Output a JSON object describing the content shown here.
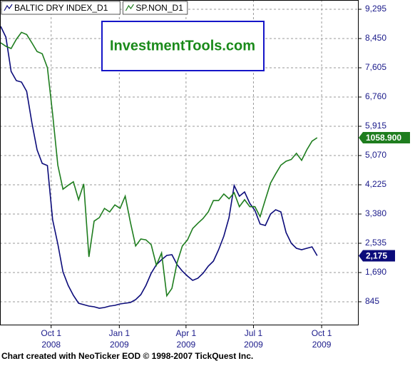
{
  "chart_data": {
    "type": "line",
    "watermark": "InvestmentTools.com",
    "footer": "Chart created with NeoTicker EOD © 1998-2007 TickQuest Inc.",
    "grid": true,
    "xlim": [
      "2008-07-24",
      "2009-11-19"
    ],
    "xticks": [
      {
        "value": "2008-10-01",
        "label": [
          "Oct 1",
          "2008"
        ]
      },
      {
        "value": "2009-01-01",
        "label": [
          "Jan 1",
          "2009"
        ]
      },
      {
        "value": "2009-04-01",
        "label": [
          "Apr 1",
          "2009"
        ]
      },
      {
        "value": "2009-07-01",
        "label": [
          "Jul 1",
          "2009"
        ]
      },
      {
        "value": "2009-10-01",
        "label": [
          "Oct 1",
          "2009"
        ]
      }
    ],
    "ylim": [
      185,
      9563
    ],
    "yticks": [
      {
        "value": 845,
        "label": "845"
      },
      {
        "value": 1690,
        "label": "1,690"
      },
      {
        "value": 2535,
        "label": "2,535"
      },
      {
        "value": 3380,
        "label": "3,380"
      },
      {
        "value": 4225,
        "label": "4,225"
      },
      {
        "value": 5070,
        "label": "5,070"
      },
      {
        "value": 5915,
        "label": "5,915"
      },
      {
        "value": 6760,
        "label": "6,760"
      },
      {
        "value": 7605,
        "label": "7,605"
      },
      {
        "value": 8450,
        "label": "8,450"
      },
      {
        "value": 9295,
        "label": "9,295"
      }
    ],
    "y2lim": [
      631,
      1374
    ],
    "x": [
      "2008-07-25",
      "2008-08-01",
      "2008-08-08",
      "2008-08-15",
      "2008-08-22",
      "2008-08-29",
      "2008-09-05",
      "2008-09-12",
      "2008-09-19",
      "2008-09-26",
      "2008-10-03",
      "2008-10-10",
      "2008-10-17",
      "2008-10-24",
      "2008-10-31",
      "2008-11-07",
      "2008-11-14",
      "2008-11-21",
      "2008-11-28",
      "2008-12-05",
      "2008-12-12",
      "2008-12-19",
      "2008-12-26",
      "2009-01-02",
      "2009-01-09",
      "2009-01-16",
      "2009-01-23",
      "2009-01-30",
      "2009-02-06",
      "2009-02-13",
      "2009-02-20",
      "2009-02-27",
      "2009-03-06",
      "2009-03-13",
      "2009-03-20",
      "2009-03-27",
      "2009-04-03",
      "2009-04-10",
      "2009-04-17",
      "2009-04-24",
      "2009-05-01",
      "2009-05-08",
      "2009-05-15",
      "2009-05-22",
      "2009-05-29",
      "2009-06-05",
      "2009-06-12",
      "2009-06-19",
      "2009-06-26",
      "2009-07-03",
      "2009-07-10",
      "2009-07-17",
      "2009-07-24",
      "2009-07-31",
      "2009-08-07",
      "2009-08-14",
      "2009-08-21",
      "2009-08-28",
      "2009-09-04",
      "2009-09-11",
      "2009-09-18",
      "2009-09-25"
    ],
    "series": [
      {
        "name": "BALTIC DRY INDEX_D1",
        "color": "#0b0b7a",
        "axis": "y",
        "values": [
          8800,
          8490,
          7500,
          7234,
          7193,
          6925,
          6018,
          5235,
          4843,
          4781,
          3215,
          2514,
          1711,
          1319,
          1030,
          804,
          763,
          721,
          700,
          659,
          680,
          721,
          742,
          783,
          804,
          824,
          907,
          1051,
          1319,
          1669,
          1917,
          2061,
          2185,
          2205,
          1917,
          1731,
          1587,
          1463,
          1525,
          1669,
          1875,
          2020,
          2350,
          2741,
          3277,
          4204,
          3895,
          4019,
          3689,
          3483,
          3091,
          3050,
          3380,
          3504,
          3442,
          2844,
          2535,
          2391,
          2350,
          2391,
          2432,
          2175
        ],
        "value_labels": [
          null,
          null,
          null,
          null,
          null,
          null,
          null,
          null,
          null,
          null,
          null,
          null,
          null,
          null,
          null,
          null,
          null,
          null,
          null,
          null,
          null,
          null,
          null,
          null,
          null,
          null,
          null,
          null,
          null,
          null,
          null,
          null,
          null,
          null,
          null,
          null,
          null,
          null,
          null,
          null,
          null,
          null,
          null,
          null,
          null,
          null,
          null,
          null,
          null,
          null,
          null,
          null,
          null,
          null,
          null,
          null,
          null,
          null,
          null,
          null,
          null,
          "2,175"
        ]
      },
      {
        "name": "SP.NON_D1",
        "color": "#1e7d1e",
        "axis": "y2",
        "values": [
          1276,
          1268,
          1263,
          1284,
          1300,
          1295,
          1276,
          1256,
          1251,
          1219,
          1113,
          996,
          941,
          950,
          958,
          917,
          953,
          786,
          868,
          876,
          897,
          889,
          905,
          897,
          925,
          865,
          811,
          827,
          825,
          814,
          767,
          795,
          697,
          714,
          773,
          811,
          825,
          851,
          863,
          874,
          889,
          915,
          915,
          930,
          919,
          933,
          901,
          917,
          901,
          901,
          878,
          917,
          955,
          976,
          996,
          1005,
          1009,
          1023,
          1007,
          1031,
          1051,
          1058.9
        ],
        "value_labels": [
          null,
          null,
          null,
          null,
          null,
          null,
          null,
          null,
          null,
          null,
          null,
          null,
          null,
          null,
          null,
          null,
          null,
          null,
          null,
          null,
          null,
          null,
          null,
          null,
          null,
          null,
          null,
          null,
          null,
          null,
          null,
          null,
          null,
          null,
          null,
          null,
          null,
          null,
          null,
          null,
          null,
          null,
          null,
          null,
          null,
          null,
          null,
          null,
          null,
          null,
          null,
          null,
          null,
          null,
          null,
          null,
          null,
          null,
          null,
          null,
          null,
          "1058.900"
        ]
      }
    ]
  }
}
